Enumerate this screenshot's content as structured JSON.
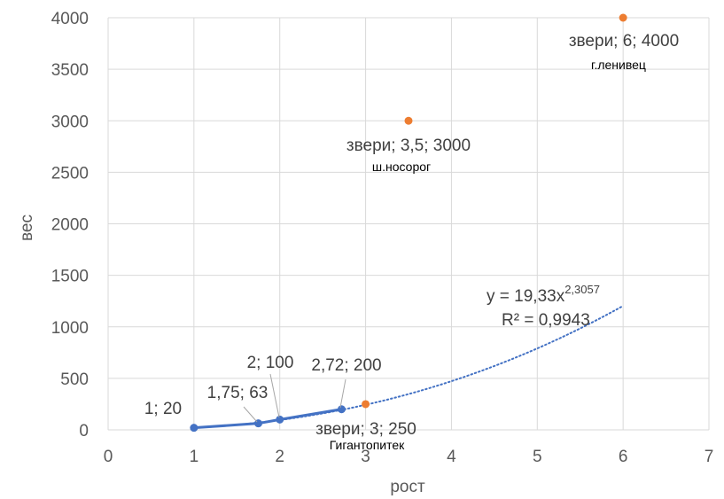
{
  "chart_data": {
    "type": "scatter",
    "xlabel": "рост",
    "ylabel": "вес",
    "xlim": [
      0,
      7
    ],
    "ylim": [
      0,
      4000
    ],
    "xticks": [
      "0",
      "1",
      "2",
      "3",
      "4",
      "5",
      "6",
      "7"
    ],
    "yticks": [
      "0",
      "500",
      "1000",
      "1500",
      "2000",
      "2500",
      "3000",
      "3500",
      "4000"
    ],
    "grid": true,
    "colors": {
      "series1": "#4472C4",
      "series2": "#ED7D31",
      "grid": "#D9D9D9"
    },
    "series": [
      {
        "points": [
          {
            "x": 1,
            "y": 20,
            "label": "1; 20"
          },
          {
            "x": 1.75,
            "y": 63,
            "label": "1,75; 63"
          },
          {
            "x": 2,
            "y": 100,
            "label": "2; 100"
          },
          {
            "x": 2.72,
            "y": 200,
            "label": "2,72; 200"
          }
        ]
      },
      {
        "points": [
          {
            "x": 3,
            "y": 250,
            "label": "звери; 3; 250",
            "note": "Гигантопитек"
          },
          {
            "x": 3.5,
            "y": 3000,
            "label": "звери; 3,5; 3000",
            "note": "ш.носорог"
          },
          {
            "x": 6,
            "y": 4000,
            "label": "звери; 6; 4000",
            "note": "г.ленивец"
          }
        ]
      }
    ],
    "trendline": {
      "type": "power",
      "a": 19.33,
      "b": 2.3057,
      "x_range": [
        1,
        6
      ],
      "equation_base": "y = 19,33x",
      "equation_exp": "2,3057",
      "r2": "R² = 0,9943"
    }
  }
}
